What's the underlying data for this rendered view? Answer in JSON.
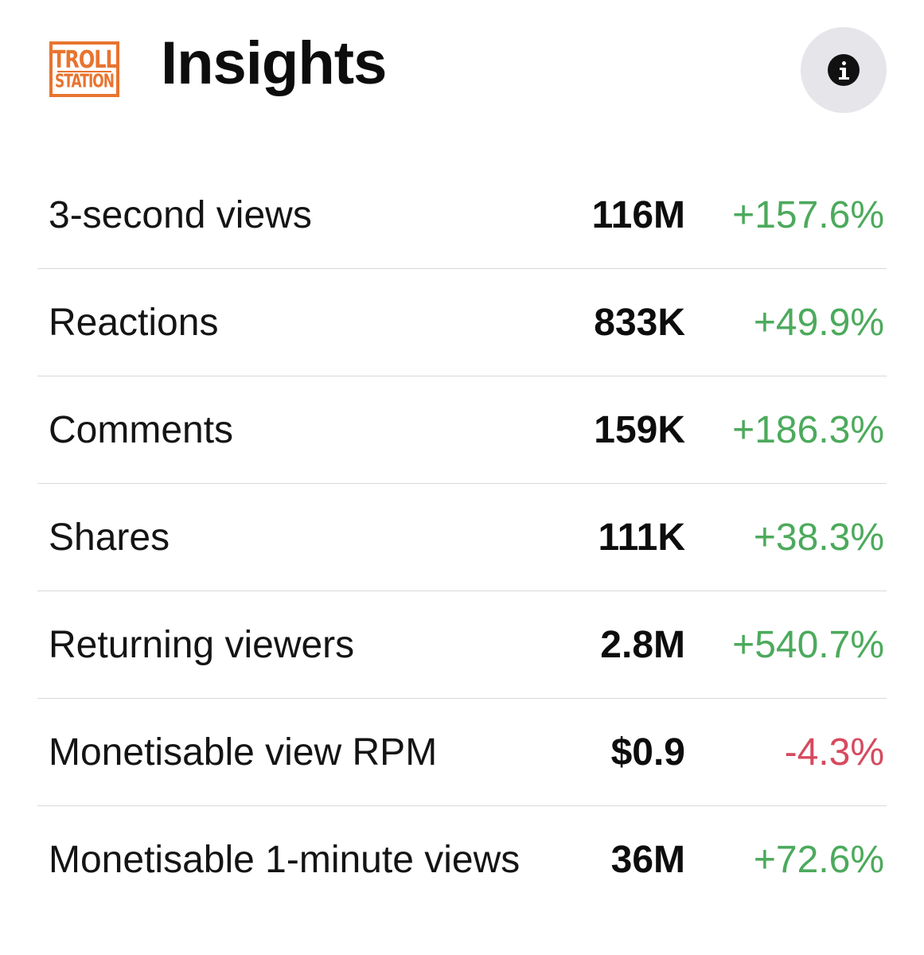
{
  "header": {
    "logo": {
      "line1": "TROLL",
      "line2": "STATION",
      "color": "#e8742f"
    },
    "title": "Insights",
    "info_icon": "info-icon"
  },
  "colors": {
    "positive": "#4caa5c",
    "negative": "#d64a5e"
  },
  "metrics": [
    {
      "label": "3-second views",
      "value": "116M",
      "change": "+157.6%",
      "trend": "up"
    },
    {
      "label": "Reactions",
      "value": "833K",
      "change": "+49.9%",
      "trend": "up"
    },
    {
      "label": "Comments",
      "value": "159K",
      "change": "+186.3%",
      "trend": "up"
    },
    {
      "label": "Shares",
      "value": "111K",
      "change": "+38.3%",
      "trend": "up"
    },
    {
      "label": "Returning viewers",
      "value": "2.8M",
      "change": "+540.7%",
      "trend": "up"
    },
    {
      "label": "Monetisable view RPM",
      "value": "$0.9",
      "change": "-4.3%",
      "trend": "down"
    },
    {
      "label": "Monetisable 1-minute views",
      "value": "36M",
      "change": "+72.6%",
      "trend": "up"
    }
  ]
}
